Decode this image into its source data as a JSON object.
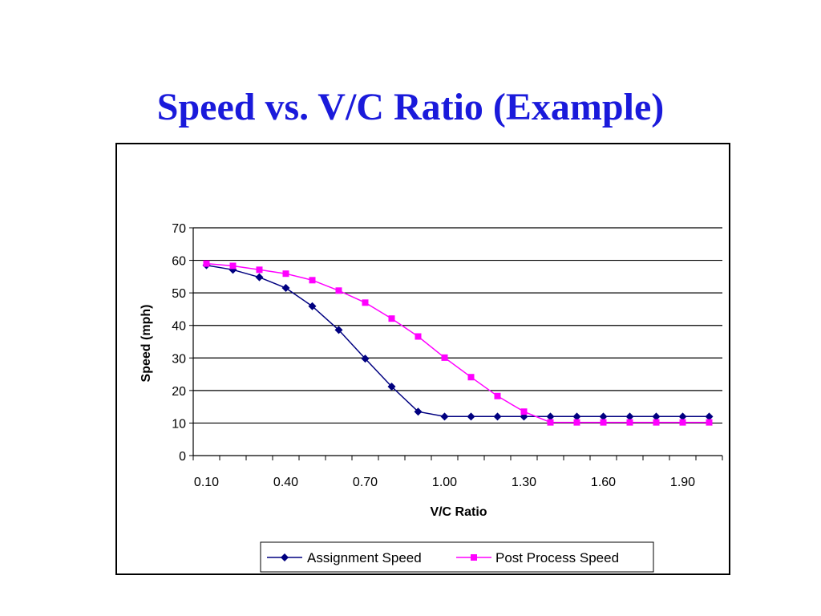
{
  "slide": {
    "title": "Speed vs. V/C Ratio (Example)"
  },
  "chart_data": {
    "type": "line",
    "title": "",
    "xlabel": "V/C Ratio",
    "ylabel": "Speed (mph)",
    "ylim": [
      0,
      70
    ],
    "yticks": [
      0,
      10,
      20,
      30,
      40,
      50,
      60,
      70
    ],
    "x": [
      0.1,
      0.2,
      0.3,
      0.4,
      0.5,
      0.6,
      0.7,
      0.8,
      0.9,
      1.0,
      1.1,
      1.2,
      1.3,
      1.4,
      1.5,
      1.6,
      1.7,
      1.8,
      1.9,
      2.0
    ],
    "x_tick_labels": [
      "0.10",
      "0.40",
      "0.70",
      "1.00",
      "1.30",
      "1.60",
      "1.90"
    ],
    "grid": "horizontal",
    "legend": "bottom",
    "series": [
      {
        "name": "Assignment Speed",
        "color": "#000080",
        "marker": "diamond",
        "values": [
          58.5,
          57.1,
          54.8,
          51.5,
          45.9,
          38.6,
          29.8,
          21.2,
          13.5,
          12.0,
          12.0,
          12.0,
          12.0,
          12.0,
          12.0,
          12.0,
          12.0,
          12.0,
          12.0,
          12.0
        ]
      },
      {
        "name": "Post Process Speed",
        "color": "#ff00ff",
        "marker": "square",
        "values": [
          59.0,
          58.3,
          57.1,
          55.9,
          53.9,
          50.7,
          47.0,
          42.1,
          36.6,
          30.1,
          24.1,
          18.3,
          13.5,
          10.2,
          10.2,
          10.2,
          10.2,
          10.2,
          10.2,
          10.2
        ]
      }
    ]
  }
}
